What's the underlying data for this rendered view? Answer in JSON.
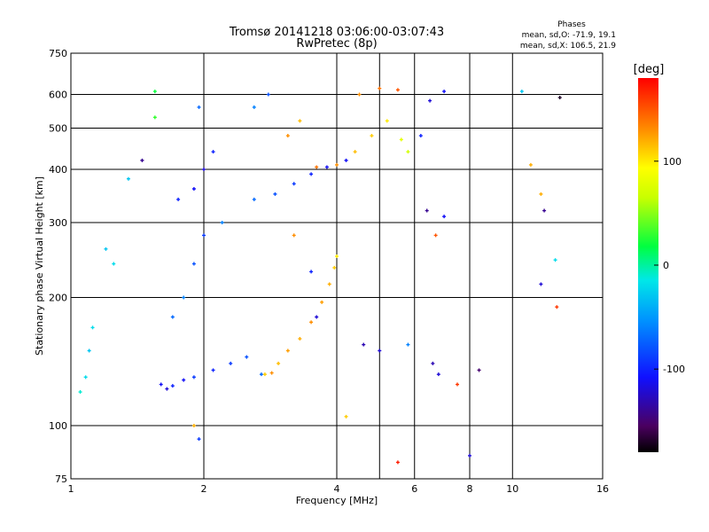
{
  "chart_data": {
    "type": "scatter",
    "title": "Tromsø 20141218 03:06:00-03:07:43",
    "subtitle": "RwPretec (8p)",
    "xlabel": "Frequency [MHz]",
    "ylabel": "Stationary phase Virtual Height [km]",
    "xscale": "log2",
    "yscale": "log",
    "xlim": [
      1,
      16
    ],
    "ylim": [
      75,
      750
    ],
    "x_ticks": [
      1,
      2,
      4,
      6,
      8,
      10,
      16
    ],
    "x_tick_labels": [
      "1",
      "2",
      "4",
      "6",
      "8",
      "10",
      "16"
    ],
    "y_ticks": [
      75,
      100,
      200,
      300,
      400,
      500,
      600,
      750
    ],
    "y_tick_labels": [
      "75",
      "100",
      "200",
      "300",
      "400",
      "500",
      "600",
      "750"
    ],
    "grid": true,
    "stats": {
      "heading": "Phases",
      "line_o": "mean, sd,O: -71.9, 19.1",
      "line_x": "mean, sd,X: 106.5, 21.9"
    },
    "colorbar": {
      "label": "[deg]",
      "range": [
        -180,
        180
      ],
      "ticks": [
        -100,
        0,
        100
      ],
      "tick_labels": [
        "-100",
        "0",
        "100"
      ],
      "colormap": "rainbow"
    },
    "series": [
      {
        "color_scale": "phase_deg",
        "points": [
          {
            "x": 1.05,
            "y": 120,
            "phase": -10
          },
          {
            "x": 1.08,
            "y": 130,
            "phase": -20
          },
          {
            "x": 1.1,
            "y": 150,
            "phase": -30
          },
          {
            "x": 1.12,
            "y": 170,
            "phase": -20
          },
          {
            "x": 1.2,
            "y": 260,
            "phase": -30
          },
          {
            "x": 1.25,
            "y": 240,
            "phase": -20
          },
          {
            "x": 1.35,
            "y": 380,
            "phase": -30
          },
          {
            "x": 1.45,
            "y": 420,
            "phase": -140
          },
          {
            "x": 1.55,
            "y": 610,
            "phase": 20
          },
          {
            "x": 1.55,
            "y": 530,
            "phase": 30
          },
          {
            "x": 1.6,
            "y": 125,
            "phase": -110
          },
          {
            "x": 1.65,
            "y": 122,
            "phase": -120
          },
          {
            "x": 1.7,
            "y": 124,
            "phase": -100
          },
          {
            "x": 1.8,
            "y": 128,
            "phase": -110
          },
          {
            "x": 1.9,
            "y": 130,
            "phase": -90
          },
          {
            "x": 2.1,
            "y": 135,
            "phase": -100
          },
          {
            "x": 2.3,
            "y": 140,
            "phase": -90
          },
          {
            "x": 2.5,
            "y": 145,
            "phase": -80
          },
          {
            "x": 2.7,
            "y": 132,
            "phase": -70
          },
          {
            "x": 2.75,
            "y": 132,
            "phase": 110
          },
          {
            "x": 2.85,
            "y": 133,
            "phase": 130
          },
          {
            "x": 2.95,
            "y": 140,
            "phase": 115
          },
          {
            "x": 3.1,
            "y": 150,
            "phase": 125
          },
          {
            "x": 3.3,
            "y": 160,
            "phase": 120
          },
          {
            "x": 3.5,
            "y": 175,
            "phase": 130
          },
          {
            "x": 3.7,
            "y": 195,
            "phase": 125
          },
          {
            "x": 3.85,
            "y": 215,
            "phase": 120
          },
          {
            "x": 3.95,
            "y": 235,
            "phase": 110
          },
          {
            "x": 4.0,
            "y": 250,
            "phase": 100
          },
          {
            "x": 1.7,
            "y": 180,
            "phase": -70
          },
          {
            "x": 1.8,
            "y": 200,
            "phase": -60
          },
          {
            "x": 1.9,
            "y": 240,
            "phase": -80
          },
          {
            "x": 2.0,
            "y": 280,
            "phase": -90
          },
          {
            "x": 1.75,
            "y": 340,
            "phase": -100
          },
          {
            "x": 1.9,
            "y": 360,
            "phase": -110
          },
          {
            "x": 2.0,
            "y": 400,
            "phase": -120
          },
          {
            "x": 2.1,
            "y": 440,
            "phase": -100
          },
          {
            "x": 1.95,
            "y": 560,
            "phase": -70
          },
          {
            "x": 2.2,
            "y": 300,
            "phase": -60
          },
          {
            "x": 2.6,
            "y": 340,
            "phase": -70
          },
          {
            "x": 2.9,
            "y": 350,
            "phase": -80
          },
          {
            "x": 3.2,
            "y": 370,
            "phase": -90
          },
          {
            "x": 3.5,
            "y": 390,
            "phase": -100
          },
          {
            "x": 3.8,
            "y": 405,
            "phase": -110
          },
          {
            "x": 4.2,
            "y": 420,
            "phase": -110
          },
          {
            "x": 3.6,
            "y": 405,
            "phase": 140
          },
          {
            "x": 4.0,
            "y": 410,
            "phase": 130
          },
          {
            "x": 4.4,
            "y": 440,
            "phase": 115
          },
          {
            "x": 4.8,
            "y": 480,
            "phase": 110
          },
          {
            "x": 5.2,
            "y": 520,
            "phase": 100
          },
          {
            "x": 5.6,
            "y": 470,
            "phase": 80
          },
          {
            "x": 5.8,
            "y": 440,
            "phase": 70
          },
          {
            "x": 4.5,
            "y": 600,
            "phase": 130
          },
          {
            "x": 5.0,
            "y": 620,
            "phase": 140
          },
          {
            "x": 5.5,
            "y": 615,
            "phase": 150
          },
          {
            "x": 3.1,
            "y": 480,
            "phase": 130
          },
          {
            "x": 3.3,
            "y": 520,
            "phase": 115
          },
          {
            "x": 2.6,
            "y": 560,
            "phase": -60
          },
          {
            "x": 2.8,
            "y": 600,
            "phase": -80
          },
          {
            "x": 3.2,
            "y": 280,
            "phase": 130
          },
          {
            "x": 3.5,
            "y": 230,
            "phase": -100
          },
          {
            "x": 3.6,
            "y": 180,
            "phase": -120
          },
          {
            "x": 6.2,
            "y": 480,
            "phase": -100
          },
          {
            "x": 6.5,
            "y": 580,
            "phase": -120
          },
          {
            "x": 7.0,
            "y": 610,
            "phase": -110
          },
          {
            "x": 6.4,
            "y": 320,
            "phase": -140
          },
          {
            "x": 6.7,
            "y": 280,
            "phase": 150
          },
          {
            "x": 7.0,
            "y": 310,
            "phase": -110
          },
          {
            "x": 6.6,
            "y": 140,
            "phase": -130
          },
          {
            "x": 6.8,
            "y": 132,
            "phase": -120
          },
          {
            "x": 7.5,
            "y": 125,
            "phase": 160
          },
          {
            "x": 8.0,
            "y": 85,
            "phase": -120
          },
          {
            "x": 8.4,
            "y": 135,
            "phase": -150
          },
          {
            "x": 10.5,
            "y": 610,
            "phase": -30
          },
          {
            "x": 11.0,
            "y": 410,
            "phase": 120
          },
          {
            "x": 11.6,
            "y": 350,
            "phase": 120
          },
          {
            "x": 11.8,
            "y": 320,
            "phase": -140
          },
          {
            "x": 11.6,
            "y": 215,
            "phase": -120
          },
          {
            "x": 12.5,
            "y": 245,
            "phase": -20
          },
          {
            "x": 12.6,
            "y": 190,
            "phase": 160
          },
          {
            "x": 12.8,
            "y": 590,
            "phase": -170
          },
          {
            "x": 5.0,
            "y": 150,
            "phase": -120
          },
          {
            "x": 5.5,
            "y": 82,
            "phase": 170
          },
          {
            "x": 5.8,
            "y": 155,
            "phase": -60
          },
          {
            "x": 4.6,
            "y": 155,
            "phase": -130
          },
          {
            "x": 4.2,
            "y": 105,
            "phase": 110
          },
          {
            "x": 1.9,
            "y": 100,
            "phase": 120
          },
          {
            "x": 1.95,
            "y": 93,
            "phase": -90
          }
        ]
      }
    ]
  }
}
